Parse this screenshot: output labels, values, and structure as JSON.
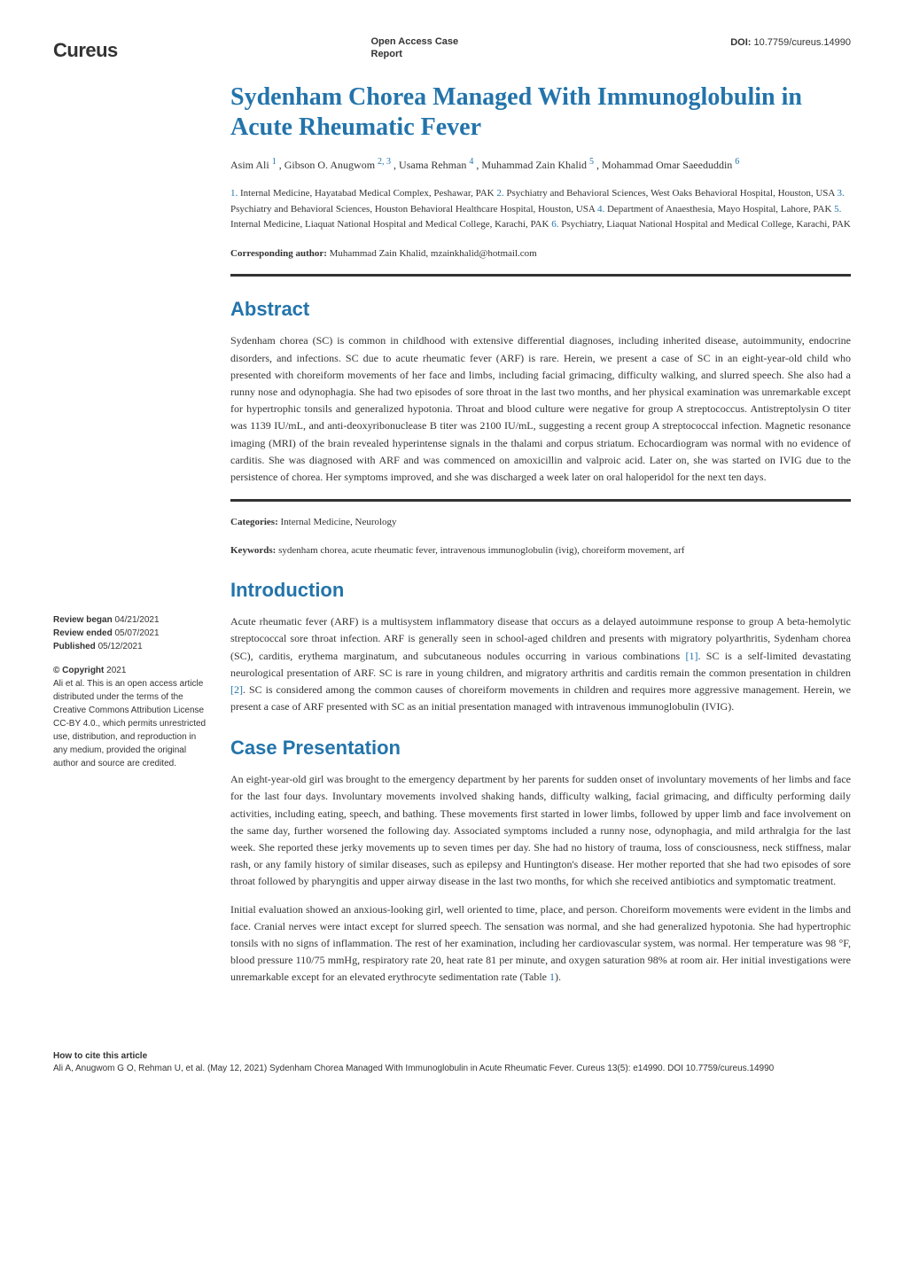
{
  "header": {
    "logo": "Cureus",
    "article_type": "Open Access Case Report",
    "doi_label": "DOI:",
    "doi_value": "10.7759/cureus.14990"
  },
  "title": "Sydenham Chorea Managed With Immunoglobulin in Acute Rheumatic Fever",
  "authors_line": "Asim Ali ",
  "authors": [
    {
      "name": "Asim Ali",
      "sup": "1"
    },
    {
      "name": "Gibson O. Anugwom",
      "sup": "2, 3"
    },
    {
      "name": "Usama Rehman",
      "sup": "4"
    },
    {
      "name": "Muhammad Zain Khalid",
      "sup": "5"
    },
    {
      "name": "Mohammad Omar Saeeduddin",
      "sup": "6"
    }
  ],
  "affiliations": [
    {
      "num": "1.",
      "text": "Internal Medicine, Hayatabad Medical Complex, Peshawar, PAK"
    },
    {
      "num": "2.",
      "text": "Psychiatry and Behavioral Sciences, West Oaks Behavioral Hospital, Houston, USA"
    },
    {
      "num": "3.",
      "text": "Psychiatry and Behavioral Sciences, Houston Behavioral Healthcare Hospital, Houston, USA"
    },
    {
      "num": "4.",
      "text": "Department of Anaesthesia, Mayo Hospital, Lahore, PAK"
    },
    {
      "num": "5.",
      "text": "Internal Medicine, Liaquat National Hospital and Medical College, Karachi, PAK"
    },
    {
      "num": "6.",
      "text": "Psychiatry, Liaquat National Hospital and Medical College, Karachi, PAK"
    }
  ],
  "corresponding_label": "Corresponding author:",
  "corresponding_text": "Muhammad Zain Khalid, mzainkhalid@hotmail.com",
  "abstract": {
    "title": "Abstract",
    "text": "Sydenham chorea (SC) is common in childhood with extensive differential diagnoses, including inherited disease, autoimmunity, endocrine disorders, and infections. SC due to acute rheumatic fever (ARF) is rare. Herein, we present a case of SC in an eight-year-old child who presented with choreiform movements of her face and limbs, including facial grimacing, difficulty walking, and slurred speech. She also had a runny nose and odynophagia. She had two episodes of sore throat in the last two months, and her physical examination was unremarkable except for hypertrophic tonsils and generalized hypotonia. Throat and blood culture were negative for group A streptococcus. Antistreptolysin O titer was 1139 IU/mL, and anti-deoxyribonuclease B titer was 2100 IU/mL, suggesting a recent group A streptococcal infection. Magnetic resonance imaging (MRI) of the brain revealed hyperintense signals in the thalami and corpus striatum. Echocardiogram was normal with no evidence of carditis. She was diagnosed with ARF and was commenced on amoxicillin and valproic acid. Later on, she was started on IVIG due to the persistence of chorea. Her symptoms improved, and she was discharged a week later on oral haloperidol for the next ten days."
  },
  "categories": {
    "label": "Categories:",
    "text": "Internal Medicine, Neurology"
  },
  "keywords": {
    "label": "Keywords:",
    "text": "sydenham chorea, acute rheumatic fever, intravenous immunoglobulin (ivig), choreiform movement, arf"
  },
  "introduction": {
    "title": "Introduction",
    "text_p1": "Acute rheumatic fever (ARF) is a multisystem inflammatory disease that occurs as a delayed autoimmune response to group A beta-hemolytic streptococcal sore throat infection. ARF is generally seen in school-aged children and presents with migratory polyarthritis, Sydenham chorea (SC), carditis, erythema marginatum, and subcutaneous nodules occurring in various combinations ",
    "ref1": "[1]",
    "text_p2": ". SC is a self-limited devastating neurological presentation of ARF. SC is rare in young children, and migratory arthritis and carditis remain the common presentation in children ",
    "ref2": "[2]",
    "text_p3": ". SC is considered among the common causes of choreiform movements in children and requires more aggressive management. Herein, we present a case of ARF presented with SC as an initial presentation managed with intravenous immunoglobulin (IVIG)."
  },
  "case": {
    "title": "Case Presentation",
    "para1": "An eight-year-old girl was brought to the emergency department by her parents for sudden onset of involuntary movements of her limbs and face for the last four days. Involuntary movements involved shaking hands, difficulty walking, facial grimacing, and difficulty performing daily activities, including eating, speech, and bathing. These movements first started in lower limbs, followed by upper limb and face involvement on the same day, further worsened the following day. Associated symptoms included a runny nose, odynophagia, and mild arthralgia for the last week. She reported these jerky movements up to seven times per day. She had no history of trauma, loss of consciousness, neck stiffness, malar rash, or any family history of similar diseases, such as epilepsy and Huntington's disease. Her mother reported that she had two episodes of sore throat followed by pharyngitis and upper airway disease in the last two months, for which she received antibiotics and symptomatic treatment.",
    "para2_a": "Initial evaluation showed an anxious-looking girl, well oriented to time, place, and person. Choreiform movements were evident in the limbs and face. Cranial nerves were intact except for slurred speech. The sensation was normal, and she had generalized hypotonia. She had hypertrophic tonsils with no signs of inflammation. The rest of her examination, including her cardiovascular system, was normal. Her temperature was 98 °F, blood pressure 110/75 mmHg, respiratory rate 20, heat rate 81 per minute, and oxygen saturation 98% at room air. Her initial investigations were unremarkable except for an elevated erythrocyte sedimentation rate (Table ",
    "table_ref": "1",
    "para2_b": ")."
  },
  "sidebar": {
    "review_began_label": "Review began",
    "review_began": "04/21/2021",
    "review_ended_label": "Review ended",
    "review_ended": "05/07/2021",
    "published_label": "Published",
    "published": "05/12/2021",
    "copyright_label": "© Copyright",
    "copyright_year": "2021",
    "copyright_text": "Ali et al. This is an open access article distributed under the terms of the Creative Commons Attribution License CC-BY 4.0., which permits unrestricted use, distribution, and reproduction in any medium, provided the original author and source are credited."
  },
  "footer": {
    "cite_label": "How to cite this article",
    "cite_text": "Ali A, Anugwom G O, Rehman U, et al. (May 12, 2021) Sydenham Chorea Managed With Immunoglobulin in Acute Rheumatic Fever. Cureus 13(5): e14990. DOI 10.7759/cureus.14990"
  },
  "colors": {
    "accent": "#2374ab",
    "text": "#333333",
    "background": "#ffffff"
  }
}
